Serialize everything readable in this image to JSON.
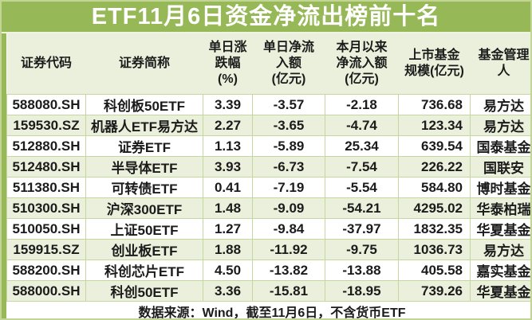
{
  "title": "ETF11月6日资金净流出榜前十名",
  "colors": {
    "accent_green": "#96b857",
    "row_alt_green": "#eaf0db",
    "grid_line": "#c4d79e",
    "title_text": "#ffffff",
    "body_text": "#1b1b1b"
  },
  "chart_data": {
    "type": "table",
    "title": "ETF11月6日资金净流出榜前十名",
    "columns": [
      "证券代码",
      "证券简称",
      "单日涨跌幅(%)",
      "单日净流入额(亿元)",
      "本月以来净流入额(亿元)",
      "上市基金规模(亿元)",
      "基金管理人"
    ],
    "header_display": [
      "证券代码",
      "证券简称",
      "单日涨\n跌幅\n(%)",
      "单日净流\n入额\n(亿元)",
      "本月以来\n净流入额\n(亿元)",
      "上市基金\n规模(亿元)",
      "基金管理\n人"
    ],
    "rows": [
      [
        "588080.SH",
        "科创板50ETF",
        "3.39",
        "-3.57",
        "-2.18",
        "736.68",
        "易方达"
      ],
      [
        "159530.SZ",
        "机器人ETF易方达",
        "2.27",
        "-3.65",
        "-4.74",
        "123.34",
        "易方达"
      ],
      [
        "512880.SH",
        "证券ETF",
        "1.13",
        "-5.89",
        "25.34",
        "639.54",
        "国泰基金"
      ],
      [
        "512480.SH",
        "半导体ETF",
        "3.93",
        "-6.73",
        "-7.54",
        "226.22",
        "国联安"
      ],
      [
        "511380.SH",
        "可转债ETF",
        "0.41",
        "-7.19",
        "-5.54",
        "584.80",
        "博时基金"
      ],
      [
        "510300.SH",
        "沪深300ETF",
        "1.48",
        "-9.09",
        "-54.21",
        "4295.02",
        "华泰柏瑞"
      ],
      [
        "510050.SH",
        "上证50ETF",
        "1.27",
        "-9.84",
        "-37.97",
        "1832.35",
        "华夏基金"
      ],
      [
        "159915.SZ",
        "创业板ETF",
        "1.88",
        "-11.92",
        "-9.75",
        "1036.73",
        "易方达"
      ],
      [
        "588200.SH",
        "科创芯片ETF",
        "4.50",
        "-13.82",
        "-13.88",
        "405.58",
        "嘉实基金"
      ],
      [
        "588000.SH",
        "科创50ETF",
        "3.36",
        "-15.81",
        "-18.95",
        "739.26",
        "华夏基金"
      ]
    ],
    "source_note": "数据来源：Wind，截至11月6日，不含货币ETF"
  }
}
